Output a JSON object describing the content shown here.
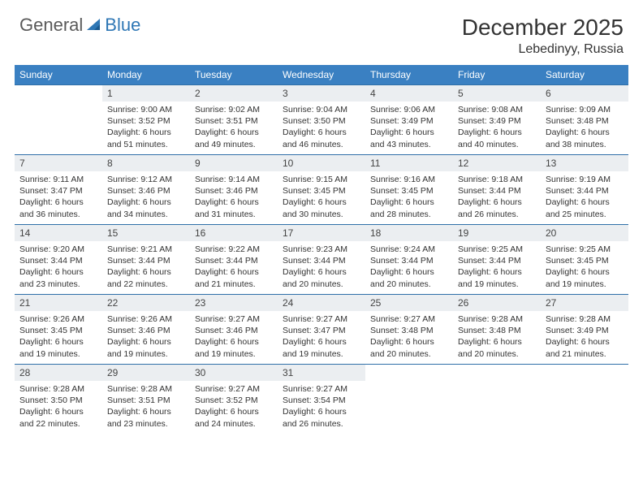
{
  "logo": {
    "text1": "General",
    "text2": "Blue"
  },
  "title": "December 2025",
  "location": "Lebedinyy, Russia",
  "colors": {
    "header_bg": "#3a80c2",
    "header_text": "#ffffff",
    "daynum_bg": "#ebeef1",
    "row_border": "#2f6fa8",
    "body_text": "#333333",
    "logo_grey": "#5a5a5a",
    "logo_blue": "#2f77b5"
  },
  "weekdays": [
    "Sunday",
    "Monday",
    "Tuesday",
    "Wednesday",
    "Thursday",
    "Friday",
    "Saturday"
  ],
  "weeks": [
    [
      {
        "n": "",
        "sr": "",
        "ss": "",
        "dl": ""
      },
      {
        "n": "1",
        "sr": "9:00 AM",
        "ss": "3:52 PM",
        "dl": "6 hours and 51 minutes."
      },
      {
        "n": "2",
        "sr": "9:02 AM",
        "ss": "3:51 PM",
        "dl": "6 hours and 49 minutes."
      },
      {
        "n": "3",
        "sr": "9:04 AM",
        "ss": "3:50 PM",
        "dl": "6 hours and 46 minutes."
      },
      {
        "n": "4",
        "sr": "9:06 AM",
        "ss": "3:49 PM",
        "dl": "6 hours and 43 minutes."
      },
      {
        "n": "5",
        "sr": "9:08 AM",
        "ss": "3:49 PM",
        "dl": "6 hours and 40 minutes."
      },
      {
        "n": "6",
        "sr": "9:09 AM",
        "ss": "3:48 PM",
        "dl": "6 hours and 38 minutes."
      }
    ],
    [
      {
        "n": "7",
        "sr": "9:11 AM",
        "ss": "3:47 PM",
        "dl": "6 hours and 36 minutes."
      },
      {
        "n": "8",
        "sr": "9:12 AM",
        "ss": "3:46 PM",
        "dl": "6 hours and 34 minutes."
      },
      {
        "n": "9",
        "sr": "9:14 AM",
        "ss": "3:46 PM",
        "dl": "6 hours and 31 minutes."
      },
      {
        "n": "10",
        "sr": "9:15 AM",
        "ss": "3:45 PM",
        "dl": "6 hours and 30 minutes."
      },
      {
        "n": "11",
        "sr": "9:16 AM",
        "ss": "3:45 PM",
        "dl": "6 hours and 28 minutes."
      },
      {
        "n": "12",
        "sr": "9:18 AM",
        "ss": "3:44 PM",
        "dl": "6 hours and 26 minutes."
      },
      {
        "n": "13",
        "sr": "9:19 AM",
        "ss": "3:44 PM",
        "dl": "6 hours and 25 minutes."
      }
    ],
    [
      {
        "n": "14",
        "sr": "9:20 AM",
        "ss": "3:44 PM",
        "dl": "6 hours and 23 minutes."
      },
      {
        "n": "15",
        "sr": "9:21 AM",
        "ss": "3:44 PM",
        "dl": "6 hours and 22 minutes."
      },
      {
        "n": "16",
        "sr": "9:22 AM",
        "ss": "3:44 PM",
        "dl": "6 hours and 21 minutes."
      },
      {
        "n": "17",
        "sr": "9:23 AM",
        "ss": "3:44 PM",
        "dl": "6 hours and 20 minutes."
      },
      {
        "n": "18",
        "sr": "9:24 AM",
        "ss": "3:44 PM",
        "dl": "6 hours and 20 minutes."
      },
      {
        "n": "19",
        "sr": "9:25 AM",
        "ss": "3:44 PM",
        "dl": "6 hours and 19 minutes."
      },
      {
        "n": "20",
        "sr": "9:25 AM",
        "ss": "3:45 PM",
        "dl": "6 hours and 19 minutes."
      }
    ],
    [
      {
        "n": "21",
        "sr": "9:26 AM",
        "ss": "3:45 PM",
        "dl": "6 hours and 19 minutes."
      },
      {
        "n": "22",
        "sr": "9:26 AM",
        "ss": "3:46 PM",
        "dl": "6 hours and 19 minutes."
      },
      {
        "n": "23",
        "sr": "9:27 AM",
        "ss": "3:46 PM",
        "dl": "6 hours and 19 minutes."
      },
      {
        "n": "24",
        "sr": "9:27 AM",
        "ss": "3:47 PM",
        "dl": "6 hours and 19 minutes."
      },
      {
        "n": "25",
        "sr": "9:27 AM",
        "ss": "3:48 PM",
        "dl": "6 hours and 20 minutes."
      },
      {
        "n": "26",
        "sr": "9:28 AM",
        "ss": "3:48 PM",
        "dl": "6 hours and 20 minutes."
      },
      {
        "n": "27",
        "sr": "9:28 AM",
        "ss": "3:49 PM",
        "dl": "6 hours and 21 minutes."
      }
    ],
    [
      {
        "n": "28",
        "sr": "9:28 AM",
        "ss": "3:50 PM",
        "dl": "6 hours and 22 minutes."
      },
      {
        "n": "29",
        "sr": "9:28 AM",
        "ss": "3:51 PM",
        "dl": "6 hours and 23 minutes."
      },
      {
        "n": "30",
        "sr": "9:27 AM",
        "ss": "3:52 PM",
        "dl": "6 hours and 24 minutes."
      },
      {
        "n": "31",
        "sr": "9:27 AM",
        "ss": "3:54 PM",
        "dl": "6 hours and 26 minutes."
      },
      {
        "n": "",
        "sr": "",
        "ss": "",
        "dl": ""
      },
      {
        "n": "",
        "sr": "",
        "ss": "",
        "dl": ""
      },
      {
        "n": "",
        "sr": "",
        "ss": "",
        "dl": ""
      }
    ]
  ],
  "labels": {
    "sunrise": "Sunrise:",
    "sunset": "Sunset:",
    "daylight": "Daylight:"
  }
}
